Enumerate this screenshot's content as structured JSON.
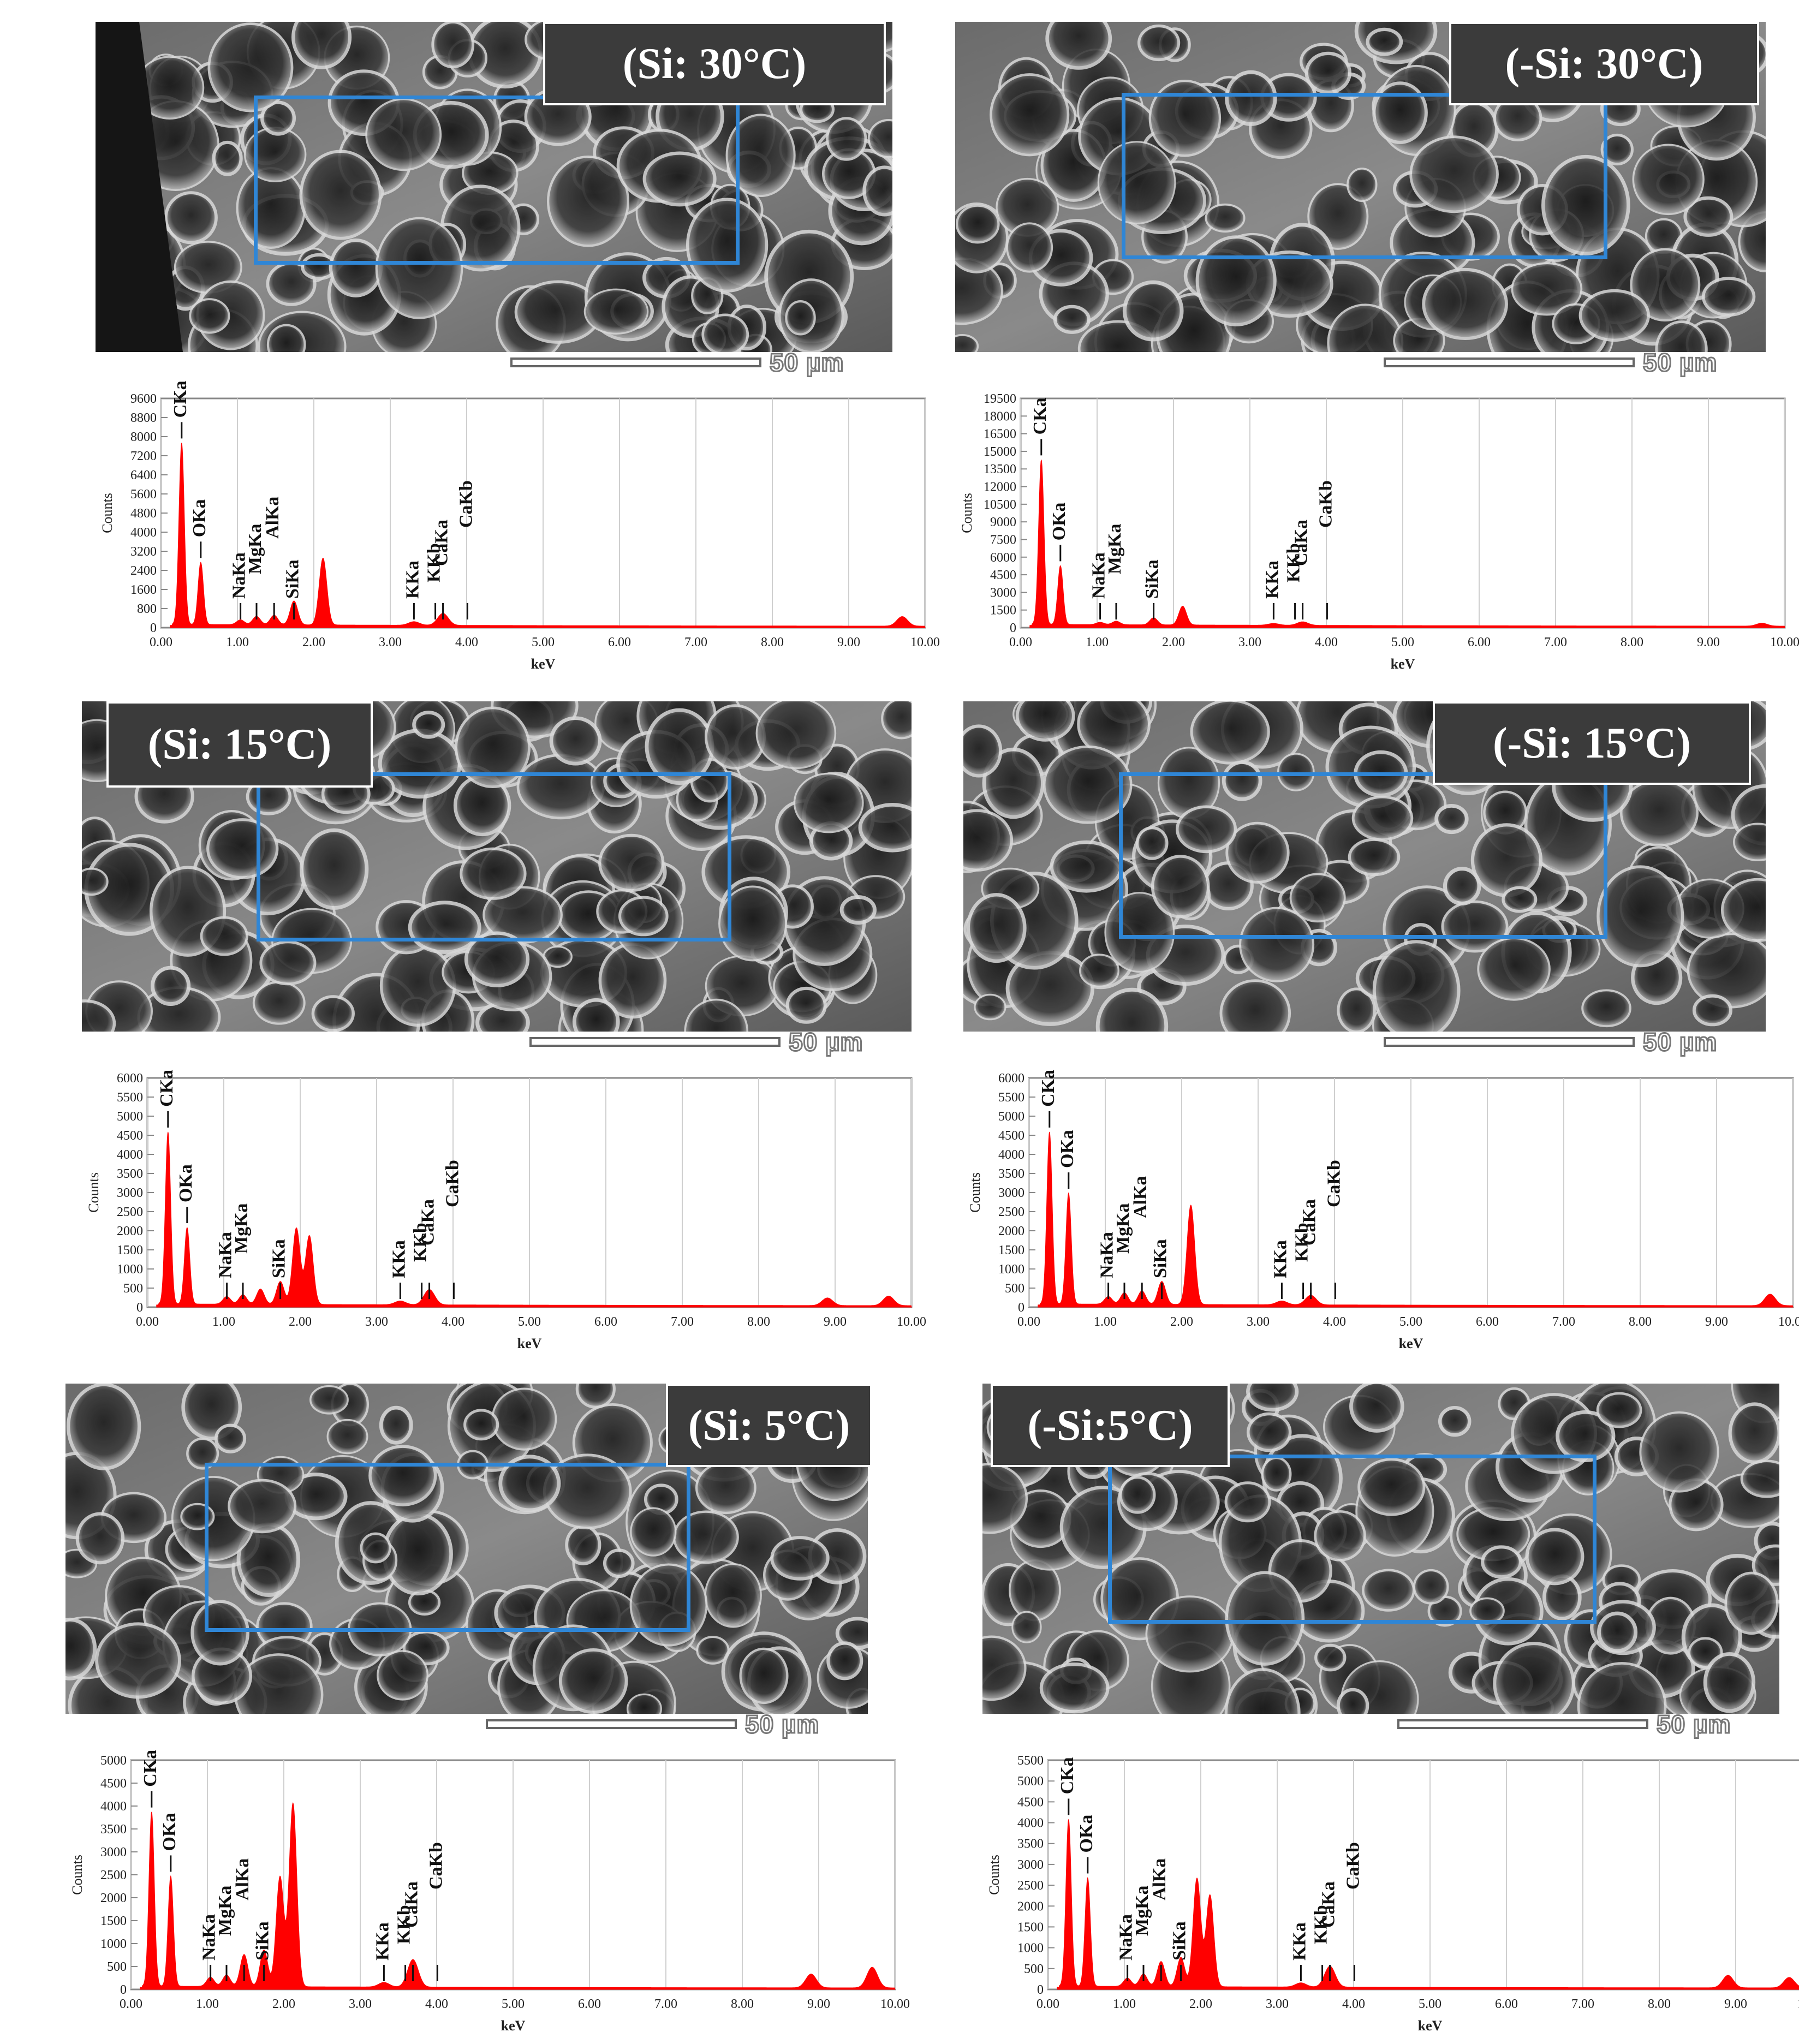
{
  "scale_label": "50 µm",
  "x_axis_label": "keV",
  "y_axis_label": "Counts",
  "x_ticks": [
    "0.00",
    "1.00",
    "2.00",
    "3.00",
    "4.00",
    "5.00",
    "6.00",
    "7.00",
    "8.00",
    "9.00",
    "10.00"
  ],
  "colors": {
    "spectrum": "#ff0000",
    "roi_box": "#2f86d6",
    "label_border": "#ffffff"
  },
  "panels": [
    {
      "id": "si30",
      "label": "(Si: 30°C)",
      "y_ticks": [
        "0",
        "800",
        "1600",
        "2400",
        "3200",
        "4000",
        "4800",
        "5600",
        "6400",
        "7200",
        "8000",
        "8800",
        "9600"
      ],
      "ymax": 9600,
      "peaks": [
        "CKa",
        "OKa",
        "NaKa",
        "MgKa",
        "AlKa",
        "SiKa",
        "KKa",
        "KKb",
        "CaKa",
        "CaKb"
      ]
    },
    {
      "id": "nsi30",
      "label": "(-Si: 30°C)",
      "y_ticks": [
        "0",
        "1500",
        "3000",
        "4500",
        "6000",
        "7500",
        "9000",
        "10500",
        "12000",
        "13500",
        "15000",
        "16500",
        "18000",
        "19500"
      ],
      "ymax": 19500,
      "peaks": [
        "CKa",
        "OKa",
        "NaKa",
        "MgKa",
        "SiKa",
        "KKa",
        "KKb",
        "CaKa",
        "CaKb"
      ]
    },
    {
      "id": "si15",
      "label": "(Si: 15°C)",
      "y_ticks": [
        "0",
        "500",
        "1000",
        "1500",
        "2000",
        "2500",
        "3000",
        "3500",
        "4000",
        "4500",
        "5000",
        "5500",
        "6000"
      ],
      "ymax": 6000,
      "peaks": [
        "CKa",
        "OKa",
        "NaKa",
        "MgKa",
        "SiKa",
        "KKa",
        "KKb",
        "CaKa",
        "CaKb"
      ]
    },
    {
      "id": "nsi15",
      "label": "(-Si: 15°C)",
      "y_ticks": [
        "0",
        "500",
        "1000",
        "1500",
        "2000",
        "2500",
        "3000",
        "3500",
        "4000",
        "4500",
        "5000",
        "5500",
        "6000"
      ],
      "ymax": 6000,
      "peaks": [
        "CKa",
        "OKa",
        "NaKa",
        "MgKa",
        "AlKa",
        "SiKa",
        "KKa",
        "KKb",
        "CaKa",
        "CaKb"
      ]
    },
    {
      "id": "si5",
      "label": "(Si: 5°C)",
      "y_ticks": [
        "0",
        "500",
        "1000",
        "1500",
        "2000",
        "2500",
        "3000",
        "3500",
        "4000",
        "4500",
        "5000"
      ],
      "ymax": 5000,
      "peaks": [
        "CKa",
        "OKa",
        "NaKa",
        "MgKa",
        "AlKa",
        "SiKa",
        "KKa",
        "KKb",
        "CaKa",
        "CaKb"
      ]
    },
    {
      "id": "nsi5",
      "label": "(-Si:5°C)",
      "y_ticks": [
        "0",
        "500",
        "1000",
        "1500",
        "2000",
        "2500",
        "3000",
        "3500",
        "4000",
        "4500",
        "5000",
        "5500"
      ],
      "ymax": 5500,
      "peaks": [
        "CKa",
        "OKa",
        "NaKa",
        "MgKa",
        "AlKa",
        "SiKa",
        "KKa",
        "KKb",
        "CaKa",
        "CaKb"
      ]
    }
  ],
  "chart_data": [
    {
      "type": "area",
      "panel": "(Si: 30°C)",
      "xlabel": "keV",
      "ylabel": "Counts",
      "xlim": [
        0,
        10
      ],
      "ylim": [
        0,
        9600
      ],
      "x": [
        0.27,
        0.52,
        1.04,
        1.25,
        1.48,
        1.74,
        2.12,
        3.31,
        3.69,
        9.7
      ],
      "y": [
        7600,
        2600,
        200,
        350,
        400,
        1000,
        2800,
        150,
        500,
        400
      ]
    },
    {
      "type": "area",
      "panel": "(-Si: 30°C)",
      "xlabel": "keV",
      "ylabel": "Counts",
      "xlim": [
        0,
        10
      ],
      "ylim": [
        0,
        19500
      ],
      "x": [
        0.27,
        0.52,
        1.04,
        1.25,
        1.74,
        2.12,
        3.31,
        3.69,
        9.7
      ],
      "y": [
        14000,
        5000,
        200,
        300,
        600,
        1600,
        150,
        300,
        250
      ]
    },
    {
      "type": "area",
      "panel": "(Si: 15°C)",
      "xlabel": "keV",
      "ylabel": "Counts",
      "xlim": [
        0,
        10
      ],
      "ylim": [
        0,
        6000
      ],
      "x": [
        0.27,
        0.52,
        1.04,
        1.25,
        1.48,
        1.74,
        1.95,
        2.12,
        3.31,
        3.69,
        8.9,
        9.7
      ],
      "y": [
        4500,
        2000,
        200,
        250,
        400,
        600,
        2000,
        1800,
        100,
        400,
        200,
        250
      ]
    },
    {
      "type": "area",
      "panel": "(-Si: 15°C)",
      "xlabel": "keV",
      "ylabel": "Counts",
      "xlim": [
        0,
        10
      ],
      "ylim": [
        0,
        6000
      ],
      "x": [
        0.27,
        0.52,
        1.04,
        1.25,
        1.48,
        1.74,
        2.12,
        3.31,
        3.69,
        9.7
      ],
      "y": [
        4500,
        2900,
        200,
        300,
        350,
        600,
        2600,
        100,
        250,
        300
      ]
    },
    {
      "type": "area",
      "panel": "(Si: 5°C)",
      "xlabel": "keV",
      "ylabel": "Counts",
      "xlim": [
        0,
        10
      ],
      "ylim": [
        0,
        5000
      ],
      "x": [
        0.27,
        0.52,
        1.04,
        1.25,
        1.48,
        1.74,
        1.95,
        2.12,
        3.31,
        3.69,
        8.9,
        9.7
      ],
      "y": [
        3800,
        2400,
        200,
        250,
        700,
        800,
        2400,
        4000,
        100,
        600,
        300,
        450
      ]
    },
    {
      "type": "area",
      "panel": "(-Si:5°C)",
      "xlabel": "keV",
      "ylabel": "Counts",
      "xlim": [
        0,
        10
      ],
      "ylim": [
        0,
        5500
      ],
      "x": [
        0.27,
        0.52,
        1.04,
        1.25,
        1.48,
        1.74,
        1.95,
        2.12,
        3.31,
        3.69,
        8.9,
        9.7
      ],
      "y": [
        4000,
        2600,
        200,
        300,
        600,
        700,
        2600,
        2200,
        100,
        500,
        300,
        250
      ]
    }
  ]
}
